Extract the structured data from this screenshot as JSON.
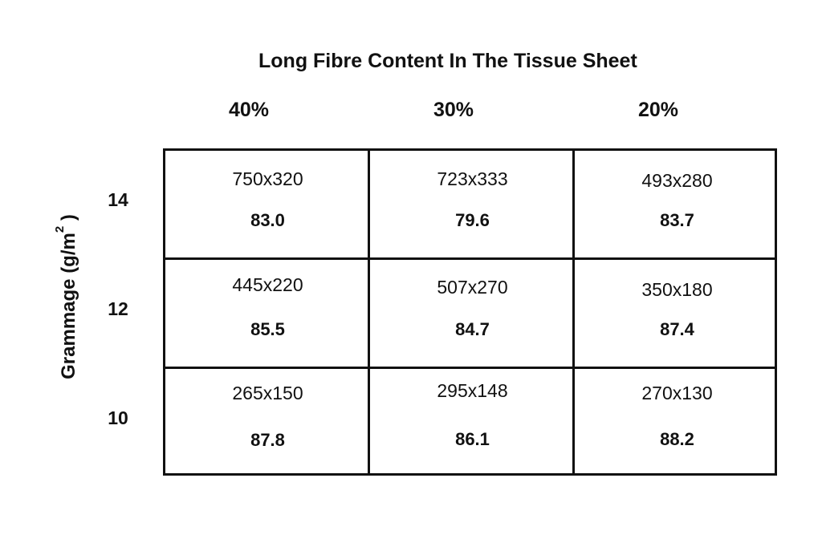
{
  "title": "Long Fibre Content In The Tissue Sheet",
  "columns": [
    "40%",
    "30%",
    "20%"
  ],
  "y_axis": {
    "label_main": "Grammage (g/m",
    "label_sup": "2",
    "label_end": " )"
  },
  "rows": [
    {
      "label": "14",
      "cells": [
        {
          "dims": "750x320",
          "value": "83.0"
        },
        {
          "dims": "723x333",
          "value": "79.6"
        },
        {
          "dims": "493x280",
          "value": "83.7"
        }
      ]
    },
    {
      "label": "12",
      "cells": [
        {
          "dims": "445x220",
          "value": "85.5"
        },
        {
          "dims": "507x270",
          "value": "84.7"
        },
        {
          "dims": "350x180",
          "value": "87.4"
        }
      ]
    },
    {
      "label": "10",
      "cells": [
        {
          "dims": "265x150",
          "value": "87.8"
        },
        {
          "dims": "295x148",
          "value": "86.1"
        },
        {
          "dims": "270x130",
          "value": "88.2"
        }
      ]
    }
  ]
}
